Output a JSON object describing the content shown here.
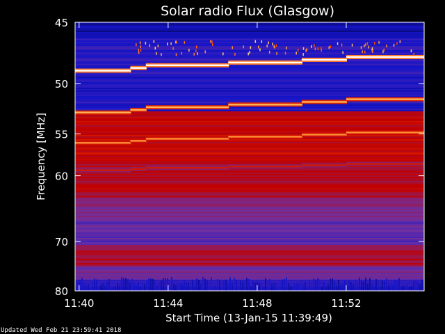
{
  "chart_data": {
    "type": "heatmap",
    "title": "Solar radio Flux (Glasgow)",
    "xlabel": "Start Time (13-Jan-15 11:39:49)",
    "ylabel": "Frequency [MHz]",
    "x_ticks": [
      "11:40",
      "11:44",
      "11:48",
      "11:52"
    ],
    "x_tick_minutes": [
      40,
      44,
      48,
      52
    ],
    "x_range_minutes": [
      39.82,
      55.5
    ],
    "y_ticks": [
      "45",
      "50",
      "55",
      "60",
      "70",
      "80"
    ],
    "y_tick_values": [
      45,
      50,
      55,
      60,
      70,
      80
    ],
    "y_range": [
      45,
      80
    ],
    "y_scale": "reciprocal",
    "colormap": [
      "#000030",
      "#1414c8",
      "#7030a0",
      "#c00000",
      "#ff5000",
      "#ffd070",
      "#ffffff"
    ],
    "emission_lines": [
      {
        "freq_start": 48.85,
        "freq_end": 47.7,
        "intensity": 1.0
      },
      {
        "freq_start": 52.75,
        "freq_end": 51.45,
        "intensity": 0.8
      },
      {
        "freq_start": 56.0,
        "freq_end": 54.85,
        "intensity": 0.75
      },
      {
        "freq_start": 59.3,
        "freq_end": 58.5,
        "intensity": 0.55
      }
    ],
    "step_minutes": [
      42.3,
      43.0,
      46.7,
      50.0,
      52.0
    ]
  },
  "footer": {
    "updated": "Updated Wed Feb 21 23:59:41 2018"
  }
}
